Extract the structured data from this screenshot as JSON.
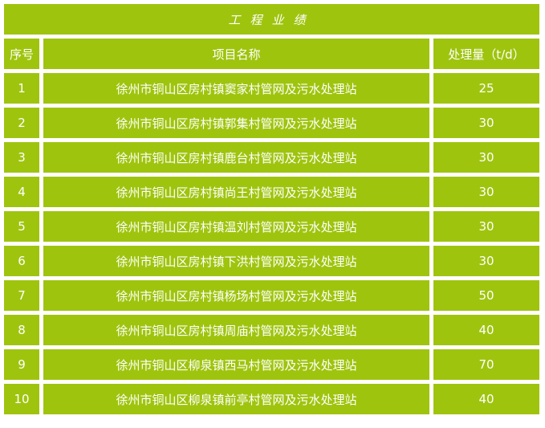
{
  "chart_data": {
    "type": "table",
    "title": "工程业绩",
    "columns": [
      "序号",
      "项目名称",
      "处理量（t/d）"
    ],
    "rows": [
      [
        "1",
        "徐州市铜山区房村镇窦家村管网及污水处理站",
        "25"
      ],
      [
        "2",
        "徐州市铜山区房村镇郭集村管网及污水处理站",
        "30"
      ],
      [
        "3",
        "徐州市铜山区房村镇鹿台村管网及污水处理站",
        "30"
      ],
      [
        "4",
        "徐州市铜山区房村镇尚王村管网及污水处理站",
        "30"
      ],
      [
        "5",
        "徐州市铜山区房村镇温刘村管网及污水处理站",
        "30"
      ],
      [
        "6",
        "徐州市铜山区房村镇下洪村管网及污水处理站",
        "30"
      ],
      [
        "7",
        "徐州市铜山区房村镇杨场村管网及污水处理站",
        "50"
      ],
      [
        "8",
        "徐州市铜山区房村镇周庙村管网及污水处理站",
        "40"
      ],
      [
        "9",
        "徐州市铜山区柳泉镇西马村管网及污水处理站",
        "70"
      ],
      [
        "10",
        "徐州市铜山区柳泉镇前亭村管网及污水处理站",
        "40"
      ]
    ],
    "layout": {
      "grid": "white gutters between solid cells",
      "legend": "none"
    }
  },
  "colors": {
    "cell_green": "#9fc40e",
    "gutter_white": "#ffffff",
    "text_white": "#ffffff"
  }
}
